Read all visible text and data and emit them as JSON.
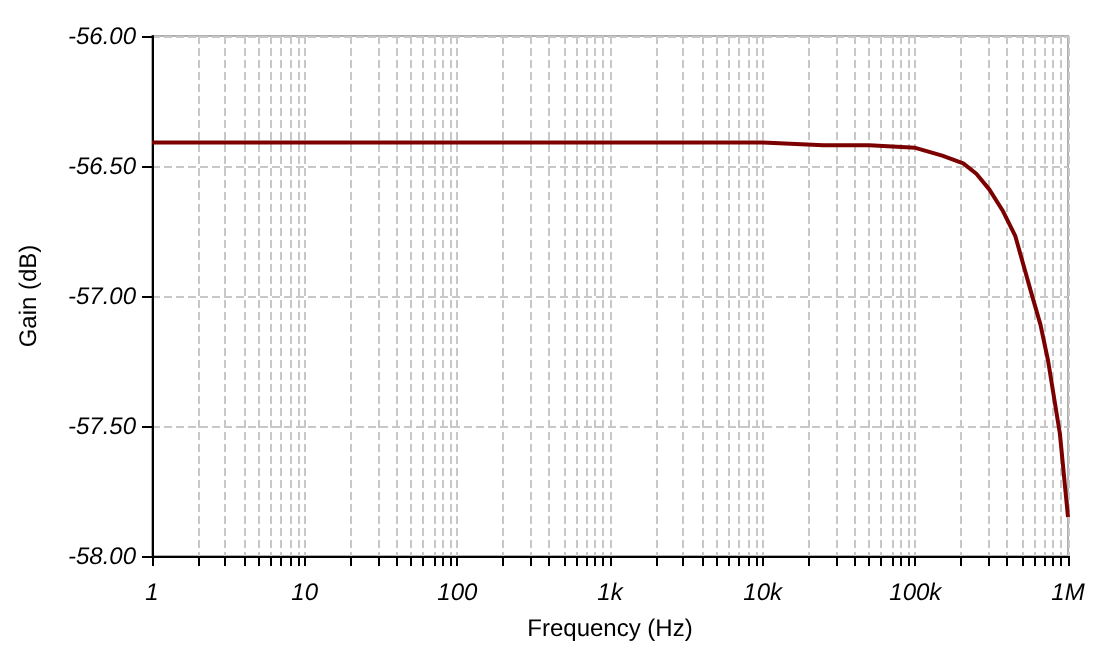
{
  "chart_data": {
    "type": "line",
    "xlabel": "Frequency (Hz)",
    "ylabel": "Gain (dB)",
    "log": "x",
    "grid": true,
    "marker": "none",
    "line_style": "solid",
    "xlim": [
      1,
      1000000
    ],
    "ylim": [
      -58,
      -56
    ],
    "xticks": [
      {
        "value": 1,
        "label": "1"
      },
      {
        "value": 2,
        "label": null
      },
      {
        "value": 3,
        "label": null
      },
      {
        "value": 4,
        "label": null
      },
      {
        "value": 5,
        "label": null
      },
      {
        "value": 6,
        "label": null
      },
      {
        "value": 7,
        "label": null
      },
      {
        "value": 8,
        "label": null
      },
      {
        "value": 9,
        "label": null
      },
      {
        "value": 10,
        "label": "10"
      },
      {
        "value": 20,
        "label": null
      },
      {
        "value": 30,
        "label": null
      },
      {
        "value": 40,
        "label": null
      },
      {
        "value": 50,
        "label": null
      },
      {
        "value": 60,
        "label": null
      },
      {
        "value": 70,
        "label": null
      },
      {
        "value": 80,
        "label": null
      },
      {
        "value": 90,
        "label": null
      },
      {
        "value": 100,
        "label": "100"
      },
      {
        "value": 200,
        "label": null
      },
      {
        "value": 300,
        "label": null
      },
      {
        "value": 400,
        "label": null
      },
      {
        "value": 500,
        "label": null
      },
      {
        "value": 600,
        "label": null
      },
      {
        "value": 700,
        "label": null
      },
      {
        "value": 800,
        "label": null
      },
      {
        "value": 900,
        "label": null
      },
      {
        "value": 1000,
        "label": "1k"
      },
      {
        "value": 2000,
        "label": null
      },
      {
        "value": 3000,
        "label": null
      },
      {
        "value": 4000,
        "label": null
      },
      {
        "value": 5000,
        "label": null
      },
      {
        "value": 6000,
        "label": null
      },
      {
        "value": 7000,
        "label": null
      },
      {
        "value": 8000,
        "label": null
      },
      {
        "value": 9000,
        "label": null
      },
      {
        "value": 10000,
        "label": "10k"
      },
      {
        "value": 20000,
        "label": null
      },
      {
        "value": 30000,
        "label": null
      },
      {
        "value": 40000,
        "label": null
      },
      {
        "value": 50000,
        "label": null
      },
      {
        "value": 60000,
        "label": null
      },
      {
        "value": 70000,
        "label": null
      },
      {
        "value": 80000,
        "label": null
      },
      {
        "value": 90000,
        "label": null
      },
      {
        "value": 100000,
        "label": "100k"
      },
      {
        "value": 200000,
        "label": null
      },
      {
        "value": 300000,
        "label": null
      },
      {
        "value": 400000,
        "label": null
      },
      {
        "value": 500000,
        "label": null
      },
      {
        "value": 600000,
        "label": null
      },
      {
        "value": 700000,
        "label": null
      },
      {
        "value": 800000,
        "label": null
      },
      {
        "value": 900000,
        "label": null
      },
      {
        "value": 1000000,
        "label": "1M"
      }
    ],
    "yticks": [
      {
        "value": -58,
        "label": "-58.00"
      },
      {
        "value": -57.5,
        "label": "-57.50"
      },
      {
        "value": -57,
        "label": "-57.00"
      },
      {
        "value": -56.5,
        "label": "-56.50"
      },
      {
        "value": -56,
        "label": "-56.00"
      }
    ],
    "series": [
      {
        "color": "#7b0000",
        "x": [
          1,
          10000,
          25000,
          50000,
          100000,
          150000,
          206000,
          251000,
          305000,
          372000,
          452000,
          576000,
          660000,
          741000,
          885000,
          1000000
        ],
        "values": [
          -56.41,
          -56.41,
          -56.42,
          -56.42,
          -56.43,
          -56.46,
          -56.49,
          -56.53,
          -56.59,
          -56.67,
          -56.77,
          -56.99,
          -57.11,
          -57.25,
          -57.53,
          -57.85
        ]
      }
    ]
  }
}
